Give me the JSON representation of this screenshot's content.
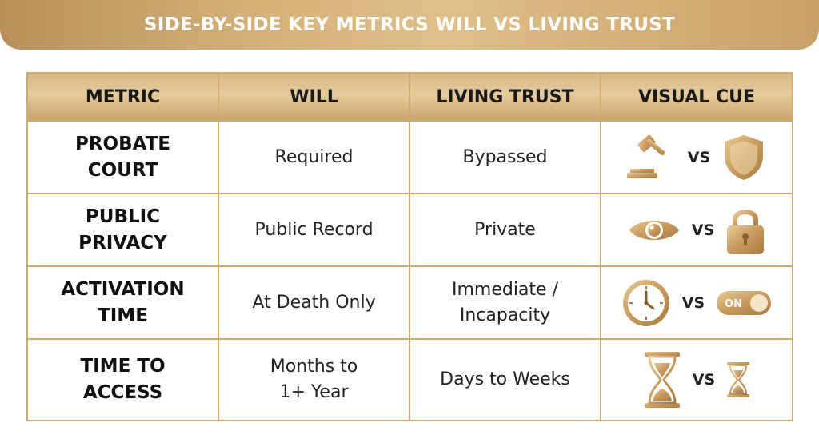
{
  "header": {
    "title": "SIDE-BY-SIDE KEY METRICS WILL VS LIVING TRUST"
  },
  "table": {
    "columns": [
      "METRIC",
      "WILL",
      "LIVING TRUST",
      "VISUAL CUE"
    ],
    "rows": [
      {
        "metric": [
          "PROBATE",
          "COURT"
        ],
        "will": [
          "Required"
        ],
        "trust": [
          "Bypassed"
        ],
        "vs": "VS",
        "icons": [
          "gavel-icon",
          "shield-icon"
        ]
      },
      {
        "metric": [
          "PUBLIC",
          "PRIVACY"
        ],
        "will": [
          "Public Record"
        ],
        "trust": [
          "Private"
        ],
        "vs": "VS",
        "icons": [
          "eye-icon",
          "padlock-icon"
        ]
      },
      {
        "metric": [
          "ACTIVATION",
          "TIME"
        ],
        "will": [
          "At Death Only"
        ],
        "trust": [
          "Immediate /",
          "Incapacity"
        ],
        "vs": "VS",
        "icons": [
          "clock-icon",
          "toggle-on-icon"
        ],
        "toggle_label": "ON"
      },
      {
        "metric": [
          "TIME TO",
          "ACCESS"
        ],
        "will": [
          "Months to",
          "1+ Year"
        ],
        "trust": [
          "Days to Weeks"
        ],
        "vs": "VS",
        "icons": [
          "hourglass-large-icon",
          "hourglass-small-icon"
        ]
      }
    ]
  },
  "colors": {
    "gold": "#c9a068",
    "gold_light": "#e0bf89",
    "border": "#cfa96e",
    "text": "#1a1a1a"
  }
}
